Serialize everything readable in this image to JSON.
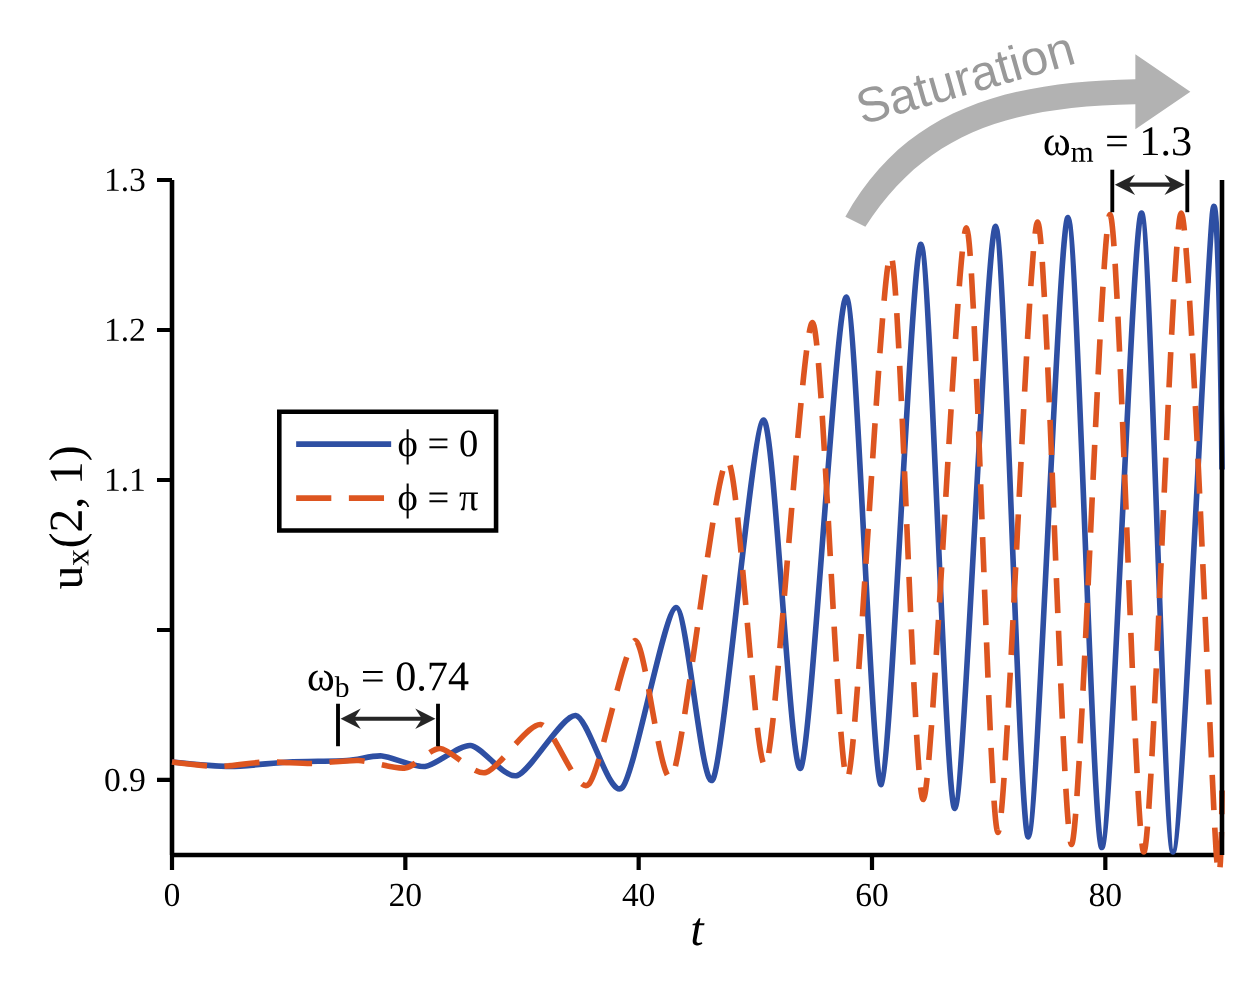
{
  "chart_data": {
    "type": "line",
    "xlabel": "t",
    "ylabel": "u$_{x}$(2, 1)",
    "xlim": [
      0,
      90
    ],
    "ylim": [
      0.85,
      1.3
    ],
    "xticks": [
      0,
      20,
      40,
      60,
      80
    ],
    "yticks": [
      0.9,
      {
        "value": 1.0,
        "label": null
      },
      1.1,
      1.2,
      1.3
    ],
    "legend": "left",
    "series": [
      {
        "name": "ϕ = 0",
        "color": "#2e4fa3",
        "line_style": "solid",
        "x": [
          0,
          5,
          10,
          15,
          18,
          21.7,
          25.6,
          29.6,
          34.6,
          38.6,
          43.2,
          46.4,
          50.7,
          53.9,
          57.8,
          60.8,
          64.2,
          67.1,
          70.6,
          73.4,
          76.8,
          79.7,
          83.1,
          85.8,
          89.2,
          90
        ],
        "values": [
          0.912,
          0.909,
          0.912,
          0.913,
          0.916,
          0.909,
          0.923,
          0.903,
          0.943,
          0.895,
          1.015,
          0.901,
          1.14,
          0.908,
          1.222,
          0.897,
          1.257,
          0.881,
          1.269,
          0.862,
          1.275,
          0.855,
          1.278,
          0.852,
          1.279,
          1.107
        ]
      },
      {
        "name": "ϕ = π",
        "color": "#dd5520",
        "line_style": "dashed",
        "x": [
          0,
          4,
          8,
          12,
          16,
          20,
          23,
          26.9,
          31.6,
          35.7,
          39.7,
          42.9,
          47.6,
          50.9,
          54.9,
          57.9,
          61.6,
          64.4,
          68.1,
          70.8,
          74.2,
          77.1,
          80.4,
          83.3,
          86.5,
          89.5,
          90
        ],
        "values": [
          0.912,
          0.909,
          0.912,
          0.911,
          0.913,
          0.908,
          0.921,
          0.905,
          0.937,
          0.897,
          0.993,
          0.903,
          1.113,
          0.91,
          1.205,
          0.901,
          1.25,
          0.887,
          1.268,
          0.865,
          1.272,
          0.857,
          1.277,
          0.852,
          1.278,
          0.852,
          0.893
        ]
      }
    ],
    "annotations": [
      "ω$_{b}$ = 0.74",
      {
        "text": "ω$_{m}$ = 1.3",
        "x": 80.4,
        "y": 1.277
      },
      "Saturation"
    ]
  }
}
